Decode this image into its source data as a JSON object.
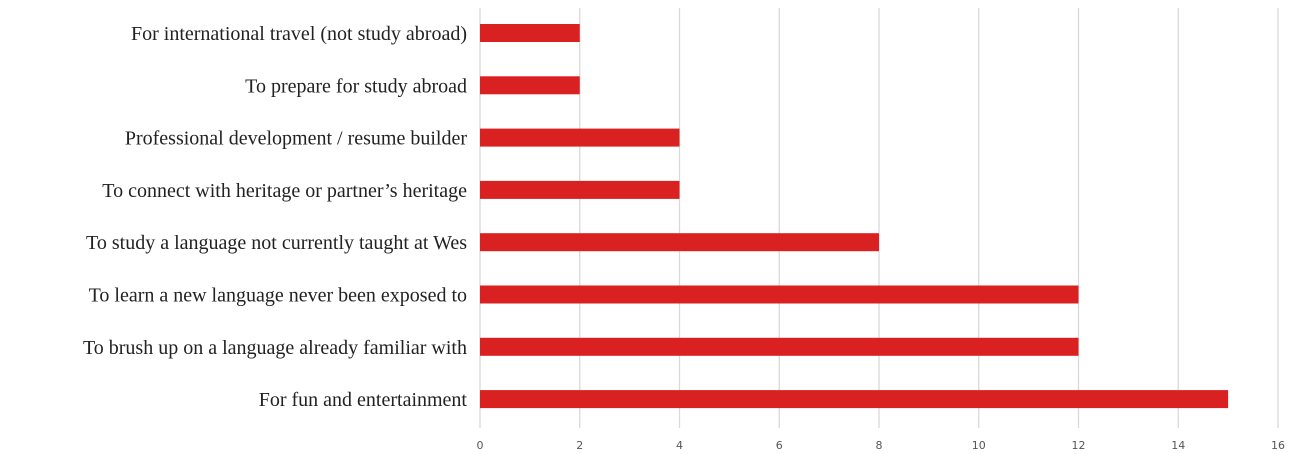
{
  "chart_data": {
    "type": "bar",
    "orientation": "horizontal",
    "title": "",
    "xlabel": "",
    "ylabel": "",
    "categories": [
      "For international travel (not study abroad)",
      "To prepare for study abroad",
      "Professional development / resume builder",
      "To connect with heritage or partner’s heritage",
      "To study a language not currently taught at Wes",
      "To learn a new language never been exposed to",
      "To brush up on a language already familiar with",
      "For fun and entertainment"
    ],
    "values": [
      2,
      2,
      4,
      4,
      8,
      12,
      12,
      15
    ],
    "xlim": [
      0,
      16
    ],
    "xticks": [
      "0",
      "2",
      "4",
      "6",
      "8",
      "10",
      "12",
      "14",
      "16"
    ],
    "grid": "vertical",
    "legend": "none",
    "bar_color": "#d92121",
    "grid_color": "#d9d9d9"
  }
}
